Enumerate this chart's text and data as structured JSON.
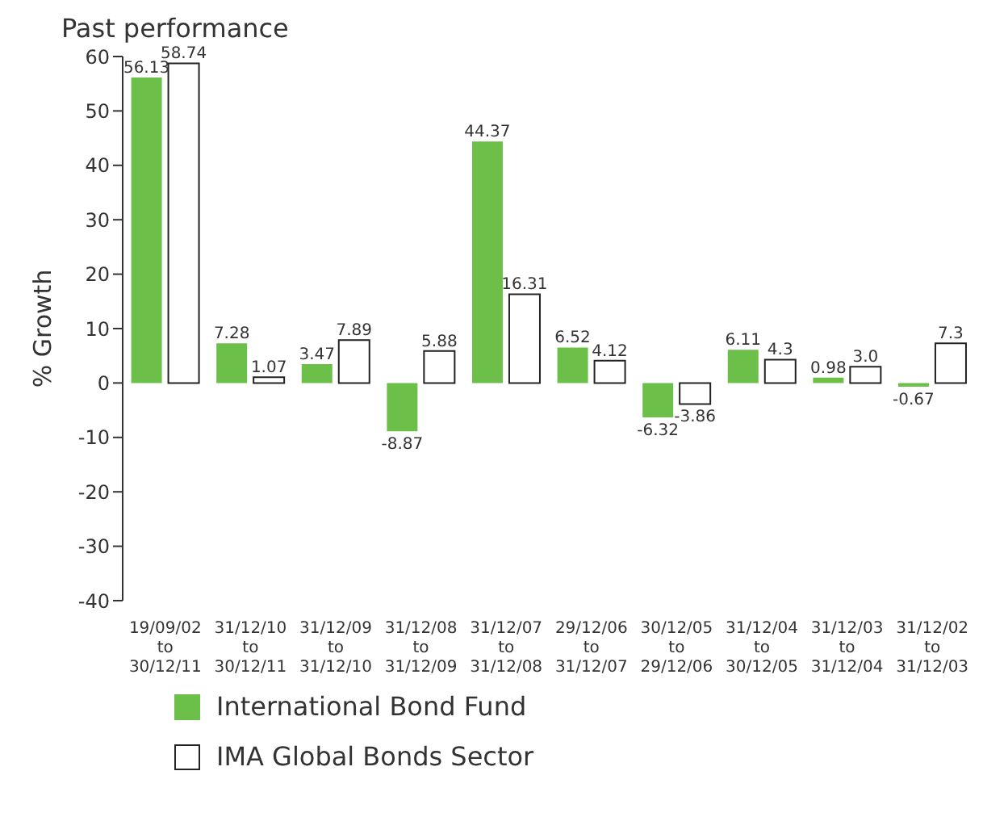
{
  "chart_data": {
    "type": "bar",
    "title": "Past performance",
    "ylabel": "% Growth",
    "categories": [
      "19/09/02\nto\n30/12/11",
      "31/12/10\nto\n30/12/11",
      "31/12/09\nto\n31/12/10",
      "31/12/08\nto\n31/12/09",
      "31/12/07\nto\n31/12/08",
      "29/12/06\nto\n31/12/07",
      "30/12/05\nto\n29/12/06",
      "31/12/04\nto\n30/12/05",
      "31/12/03\nto\n31/12/04",
      "31/12/02\nto\n31/12/03"
    ],
    "series": [
      {
        "name": "International Bond Fund",
        "color": "#6cc04a",
        "values": [
          56.13,
          7.28,
          3.47,
          -8.87,
          44.37,
          6.52,
          -6.32,
          6.11,
          0.98,
          -0.67
        ],
        "value_labels": [
          "56.13",
          "7.28",
          "3.47",
          "-8.87",
          "44.37",
          "6.52",
          "-6.32",
          "6.11",
          "0.98",
          "-0.67"
        ]
      },
      {
        "name": "IMA Global Bonds Sector",
        "color": "#ffffff",
        "values": [
          58.74,
          1.07,
          7.89,
          5.88,
          16.31,
          4.12,
          -3.86,
          4.3,
          3.0,
          7.3
        ],
        "value_labels": [
          "58.74",
          "1.07",
          "7.89",
          "5.88",
          "16.31",
          "4.12",
          "-3.86",
          "4.3",
          "3.0",
          "7.3"
        ]
      }
    ],
    "ylim": [
      -40,
      60
    ],
    "yticks": [
      -40,
      -30,
      -20,
      -10,
      0,
      10,
      20,
      30,
      40,
      50,
      60
    ],
    "legend": "bottom"
  }
}
